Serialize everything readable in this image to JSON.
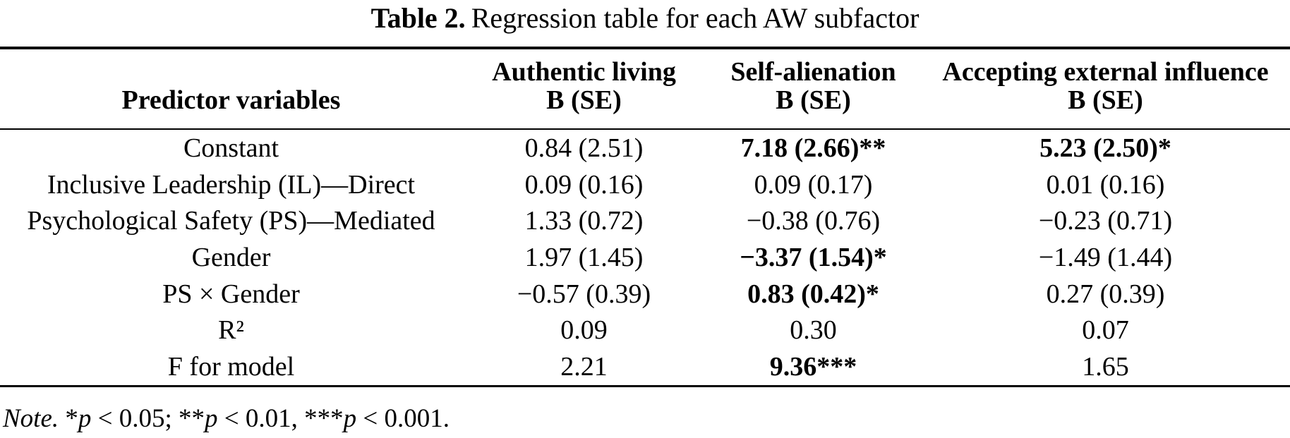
{
  "title": {
    "label": "Table 2.",
    "text": "Regression table for each AW subfactor"
  },
  "table": {
    "header": {
      "col1": "Predictor variables",
      "col2_line1": "Authentic living",
      "col2_line2": "B (SE)",
      "col3_line1": "Self-alienation",
      "col3_line2": "B (SE)",
      "col4_line1": "Accepting external influence",
      "col4_line2": "B (SE)"
    },
    "rows": [
      {
        "label": "Constant",
        "cols": [
          {
            "text": "0.84 (2.51)",
            "bold": false
          },
          {
            "text": "7.18 (2.66)**",
            "bold": true
          },
          {
            "text": "5.23 (2.50)*",
            "bold": true
          }
        ]
      },
      {
        "label": "Inclusive Leadership (IL)—Direct",
        "cols": [
          {
            "text": "0.09 (0.16)",
            "bold": false
          },
          {
            "text": "0.09 (0.17)",
            "bold": false
          },
          {
            "text": "0.01 (0.16)",
            "bold": false
          }
        ]
      },
      {
        "label": "Psychological Safety (PS)—Mediated",
        "cols": [
          {
            "text": "1.33 (0.72)",
            "bold": false
          },
          {
            "text": "−0.38 (0.76)",
            "bold": false
          },
          {
            "text": "−0.23 (0.71)",
            "bold": false
          }
        ]
      },
      {
        "label": "Gender",
        "cols": [
          {
            "text": "1.97 (1.45)",
            "bold": false
          },
          {
            "text": "−3.37 (1.54)*",
            "bold": true
          },
          {
            "text": "−1.49 (1.44)",
            "bold": false
          }
        ]
      },
      {
        "label": "PS × Gender",
        "cols": [
          {
            "text": "−0.57 (0.39)",
            "bold": false
          },
          {
            "text": "0.83 (0.42)*",
            "bold": true
          },
          {
            "text": "0.27 (0.39)",
            "bold": false
          }
        ]
      },
      {
        "label": "R²",
        "cols": [
          {
            "text": "0.09",
            "bold": false
          },
          {
            "text": "0.30",
            "bold": false
          },
          {
            "text": "0.07",
            "bold": false
          }
        ]
      },
      {
        "label": "F for model",
        "cols": [
          {
            "text": "2.21",
            "bold": false
          },
          {
            "text": "9.36***",
            "bold": true
          },
          {
            "text": "1.65",
            "bold": false
          }
        ]
      }
    ]
  },
  "note": {
    "label": "Note.",
    "seg1": " *",
    "p1": "p",
    "seg2": " < 0.05; **",
    "p2": "p",
    "seg3": " < 0.01, ***",
    "p3": "p",
    "seg4": " < 0.001."
  }
}
